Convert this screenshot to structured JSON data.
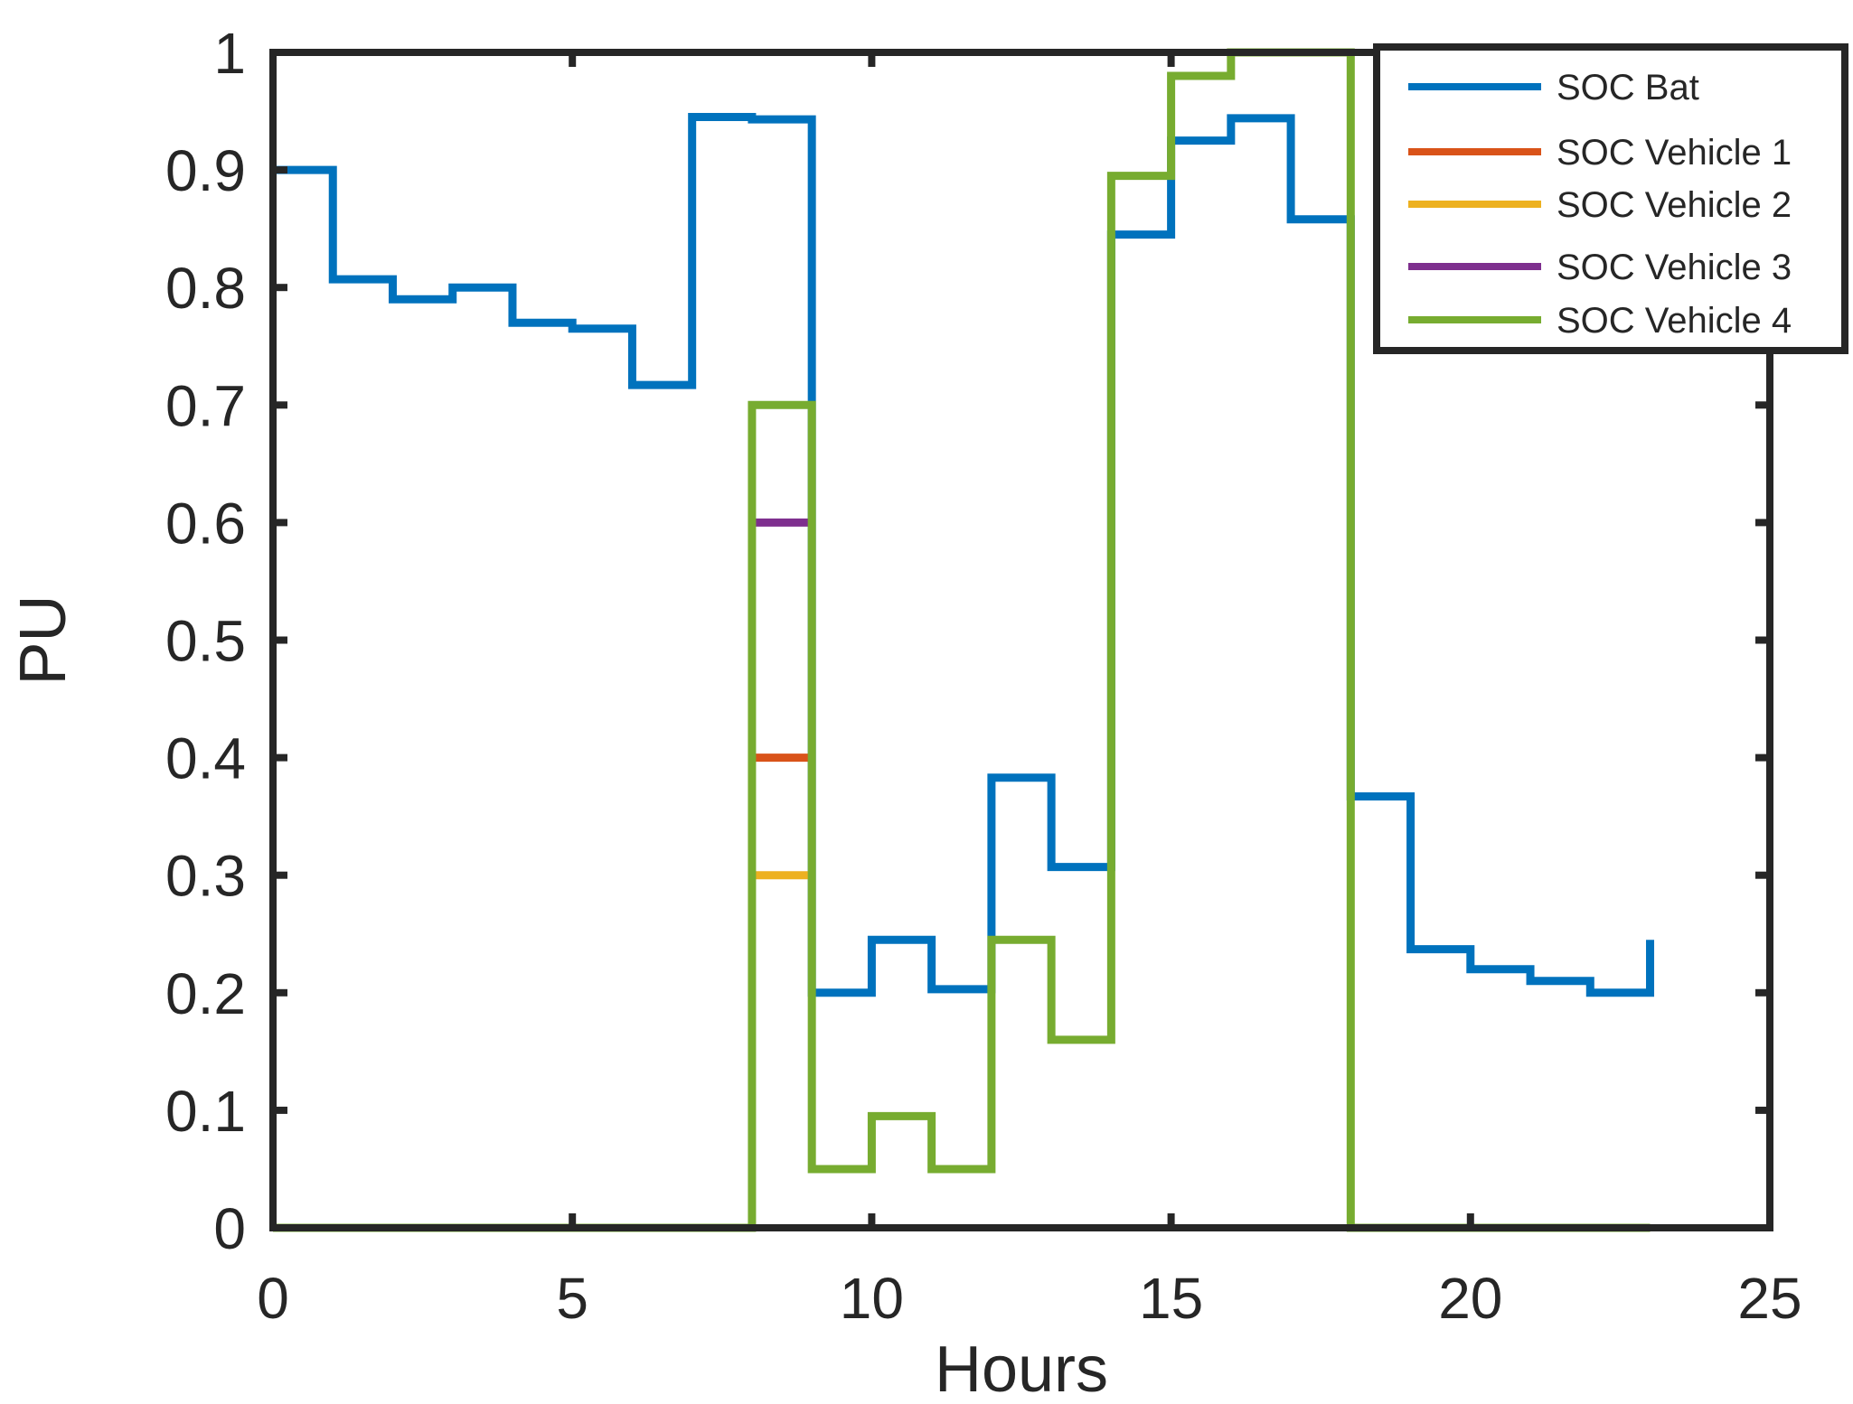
{
  "chart_data": {
    "type": "line",
    "xlabel": "Hours",
    "ylabel": "PU",
    "xlim": [
      0,
      25
    ],
    "ylim": [
      0,
      1
    ],
    "x_ticks": [
      "0",
      "5",
      "10",
      "15",
      "20",
      "25"
    ],
    "y_ticks": [
      "0",
      "0.1",
      "0.2",
      "0.3",
      "0.4",
      "0.5",
      "0.6",
      "0.7",
      "0.8",
      "0.9",
      "1"
    ],
    "grid": false,
    "legend_position": "top-right",
    "line_style": "step",
    "series": [
      {
        "name": "SOC Bat",
        "color": "#0072BD",
        "x": [
          0,
          1,
          2,
          3,
          4,
          5,
          6,
          7,
          8,
          9,
          10,
          11,
          12,
          13,
          14,
          15,
          16,
          17,
          18,
          19,
          20,
          21,
          22,
          23
        ],
        "values": [
          0.9,
          0.807,
          0.79,
          0.8,
          0.77,
          0.765,
          0.717,
          0.945,
          0.943,
          0.2,
          0.245,
          0.203,
          0.383,
          0.307,
          0.845,
          0.925,
          0.944,
          0.858,
          0.367,
          0.237,
          0.22,
          0.21,
          0.2,
          0.245
        ]
      },
      {
        "name": "SOC Vehicle 1",
        "color": "#D95319",
        "x": [
          8,
          9
        ],
        "values": [
          0.4,
          0.4
        ]
      },
      {
        "name": "SOC Vehicle 2",
        "color": "#EDB120",
        "x": [
          8,
          9
        ],
        "values": [
          0.3,
          0.3
        ]
      },
      {
        "name": "SOC Vehicle 3",
        "color": "#7E2F8E",
        "x": [
          8,
          9
        ],
        "values": [
          0.6,
          0.6
        ]
      },
      {
        "name": "SOC Vehicle 4",
        "color": "#77AC30",
        "x": [
          0,
          1,
          2,
          3,
          4,
          5,
          6,
          7,
          8,
          9,
          10,
          11,
          12,
          13,
          14,
          15,
          16,
          17,
          18,
          19,
          20,
          21,
          22,
          23
        ],
        "values": [
          0,
          0,
          0,
          0,
          0,
          0,
          0,
          0,
          0.7,
          0.05,
          0.095,
          0.05,
          0.245,
          0.16,
          0.895,
          0.98,
          1.0,
          1.0,
          0,
          0,
          0,
          0,
          0,
          0
        ]
      }
    ]
  }
}
